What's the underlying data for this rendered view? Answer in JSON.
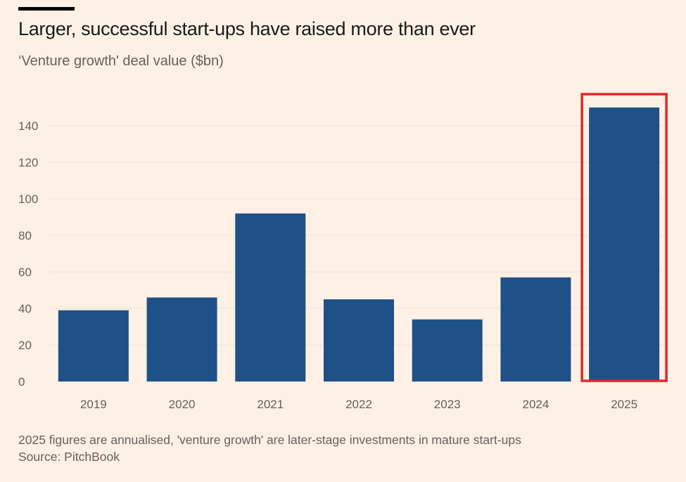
{
  "colors": {
    "background": "#fdf1e5",
    "bar": "#1f5189",
    "highlight_box": "#e3262c",
    "gridline": "#ede2d6"
  },
  "chart_data": {
    "type": "bar",
    "title": "Larger, successful start-ups have raised more than ever",
    "subtitle": "‘Venture growth' deal value ($bn)",
    "categories": [
      "2019",
      "2020",
      "2021",
      "2022",
      "2023",
      "2024",
      "2025"
    ],
    "values": [
      39,
      46,
      92,
      45,
      34,
      57,
      150
    ],
    "ylim": [
      0,
      150
    ],
    "yticks": [
      0,
      20,
      40,
      60,
      80,
      100,
      120,
      140
    ],
    "grid": true,
    "highlight_category": "2025"
  },
  "footnote": "2025 figures are annualised, 'venture growth' are later-stage investments in mature start-ups",
  "source": "Source: PitchBook"
}
